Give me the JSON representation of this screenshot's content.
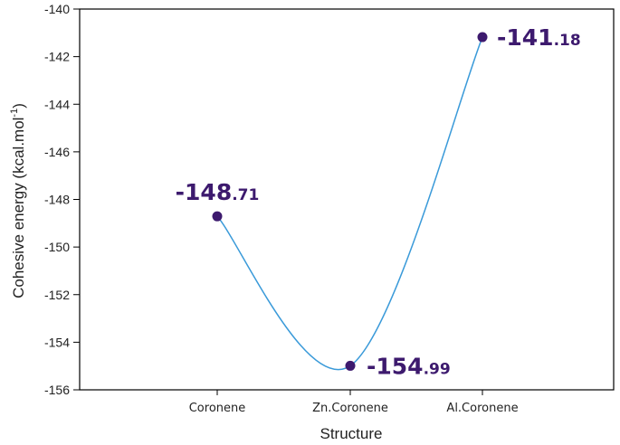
{
  "chart_data": {
    "type": "line",
    "title": "",
    "xlabel": "Structure",
    "ylabel_main": "Cohesive energy (kcal.mol",
    "ylabel_sup": "-1",
    "ylabel_close": ")",
    "categories": [
      "Coronene",
      "Zn.Coronene",
      "Al.Coronene"
    ],
    "values": [
      -148.71,
      -154.99,
      -141.18
    ],
    "data_labels": [
      {
        "int": "-148",
        "dec": ".71"
      },
      {
        "int": "-154",
        "dec": ".99"
      },
      {
        "int": "-141",
        "dec": ".18"
      }
    ],
    "ylim": [
      -156,
      -140
    ],
    "yticks": [
      -140,
      -142,
      -144,
      -146,
      -148,
      -150,
      -152,
      -154,
      -156
    ],
    "grid": false,
    "line_color": "#3a9ad9",
    "marker_color": "#3d1a6e",
    "label_color": "#3d1a6e"
  }
}
